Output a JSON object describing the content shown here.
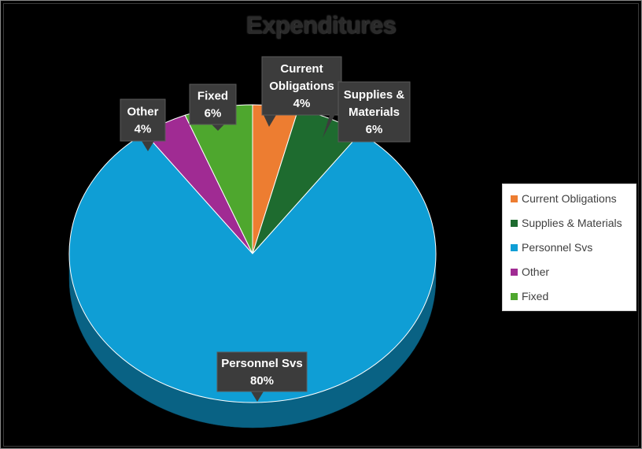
{
  "chart_data": {
    "type": "pie",
    "title": "Expenditures",
    "categories": [
      "Current Obligations",
      "Supplies & Materials",
      "Personnel Svs",
      "Other",
      "Fixed"
    ],
    "values": [
      4,
      6,
      80,
      4,
      6
    ],
    "unit": "%",
    "data_labels": [
      {
        "name": "Current Obligations",
        "lines": [
          "Current",
          "Obligations"
        ],
        "value": "4%"
      },
      {
        "name": "Supplies & Materials",
        "lines": [
          "Supplies &",
          "Materials"
        ],
        "value": "6%"
      },
      {
        "name": "Personnel Svs",
        "lines": [
          "Personnel Svs"
        ],
        "value": "80%"
      },
      {
        "name": "Other",
        "lines": [
          "Other"
        ],
        "value": "4%"
      },
      {
        "name": "Fixed",
        "lines": [
          "Fixed"
        ],
        "value": "6%"
      }
    ],
    "colors": [
      "#ed7d31",
      "#1e6b2f",
      "#0f9ed5",
      "#a02b93",
      "#4ea72e"
    ],
    "legend_placement": "right",
    "style": "3d-pie"
  }
}
